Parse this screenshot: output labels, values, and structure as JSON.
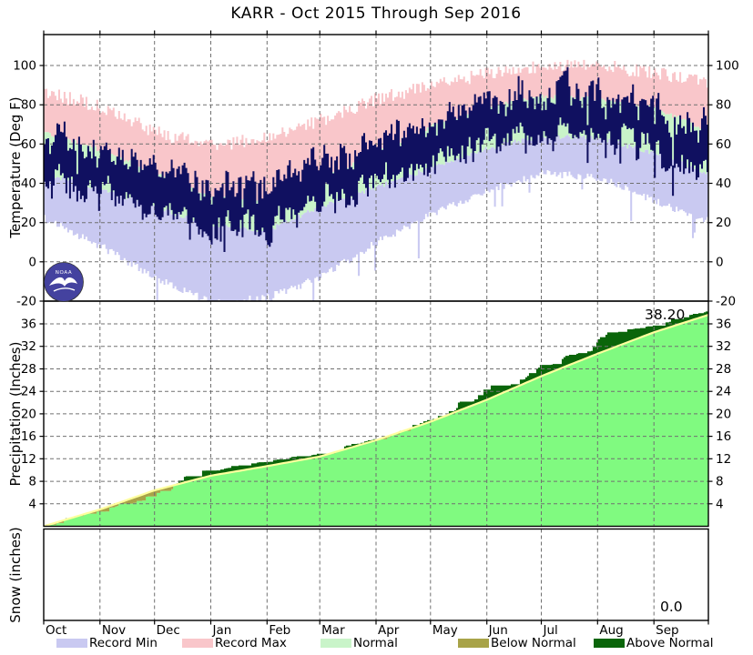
{
  "title": "KARR - Oct 2015 Through Sep 2016",
  "axes": {
    "temperature": {
      "label": "Temperature (Deg F)",
      "ticks": [
        100,
        80,
        60,
        40,
        20,
        0,
        -20
      ],
      "min": -20,
      "max": 115
    },
    "precipitation": {
      "label": "Precipitation (Inches)",
      "ticks": [
        36,
        32,
        28,
        24,
        20,
        16,
        12,
        8,
        4
      ],
      "min": 0,
      "max": 40
    },
    "snow": {
      "label": "Snow (inches)"
    },
    "x": {
      "months": [
        "Oct",
        "Nov",
        "Dec",
        "Jan",
        "Feb",
        "Mar",
        "Apr",
        "May",
        "Jun",
        "Jul",
        "Aug",
        "Sep"
      ],
      "month_days": [
        31,
        30,
        31,
        31,
        29,
        31,
        30,
        31,
        30,
        31,
        31,
        30
      ]
    }
  },
  "annotations": {
    "precip_total": "38.20",
    "snow_total": "0.0"
  },
  "logo": {
    "name": "NOAA logo",
    "text": "NOAA"
  },
  "legend": [
    {
      "label": "Record Min",
      "color": "#c9c9f1"
    },
    {
      "label": "Record Max",
      "color": "#f9c6ca"
    },
    {
      "label": "Normal",
      "color": "#c9f4c9"
    },
    {
      "label": "Below Normal",
      "color": "#a8a348"
    },
    {
      "label": "Above Normal",
      "color": "#0a650a"
    }
  ],
  "colors": {
    "record_min": "#c9c9f1",
    "record_max": "#f9c6ca",
    "normal_band": "#c9f4c9",
    "observed": "#101060",
    "precip_actual": "#80fa80",
    "normal_line": "#ffff9e",
    "below_normal": "#a8a348",
    "above_normal": "#0a650a",
    "grid": "#707070",
    "frame": "#000000",
    "logo_blue": "#44429f"
  },
  "render": {
    "seed": 20160930,
    "bar_width": 2.05
  },
  "chart_data": [
    {
      "panel": "temperature",
      "type": "area",
      "title": "KARR - Oct 2015 Through Sep 2016",
      "ylabel": "Temperature (Deg F)",
      "ylim": [
        -20,
        115
      ],
      "yticks": [
        100,
        80,
        60,
        40,
        20,
        0,
        -20
      ],
      "x_months": [
        "Oct",
        "Nov",
        "Dec",
        "Jan",
        "Feb",
        "Mar",
        "Apr",
        "May",
        "Jun",
        "Jul",
        "Aug",
        "Sep"
      ],
      "grid": "dashed",
      "series_month_start_values": {
        "record_high": [
          87,
          79,
          66,
          59,
          63,
          72,
          83,
          90,
          96,
          100,
          100,
          96,
          92
        ],
        "normal_high": [
          66,
          57,
          45,
          33,
          31,
          42,
          56,
          69,
          79,
          84,
          83,
          78,
          67
        ],
        "normal_low": [
          45,
          37,
          28,
          18,
          16,
          28,
          38,
          48,
          58,
          64,
          63,
          55,
          45
        ],
        "record_low": [
          24,
          10,
          -6,
          -19,
          -16,
          -6,
          12,
          26,
          38,
          47,
          45,
          33,
          23
        ],
        "observed_high_typical": [
          64,
          53,
          42,
          34,
          35,
          48,
          60,
          70,
          81,
          86,
          85,
          80,
          70
        ],
        "observed_low_typical": [
          46,
          37,
          27,
          18,
          19,
          30,
          41,
          50,
          60,
          65,
          64,
          57,
          48
        ]
      },
      "legend_entries": [
        "Record Min",
        "Record Max",
        "Normal"
      ]
    },
    {
      "panel": "precipitation",
      "type": "area",
      "ylabel": "Precipitation (Inches)",
      "ylim": [
        0,
        40
      ],
      "yticks": [
        36,
        32,
        28,
        24,
        20,
        16,
        12,
        8,
        4
      ],
      "grid": "dashed",
      "total_label": "38.20",
      "cumulative_month_start_values": {
        "actual": [
          0,
          2.6,
          5.3,
          9.9,
          11.4,
          12.9,
          15.5,
          18.9,
          24.3,
          28.7,
          32.7,
          35.7,
          38.2
        ],
        "normal": [
          0,
          3.0,
          6.4,
          9.0,
          10.7,
          12.4,
          15.3,
          18.6,
          22.5,
          26.7,
          30.7,
          34.5,
          37.6
        ]
      },
      "legend_entries": [
        "Below Normal",
        "Above Normal"
      ]
    },
    {
      "panel": "snow",
      "type": "area",
      "ylabel": "Snow (inches)",
      "total_label": "0.0",
      "cumulative_values": [
        0
      ]
    }
  ]
}
